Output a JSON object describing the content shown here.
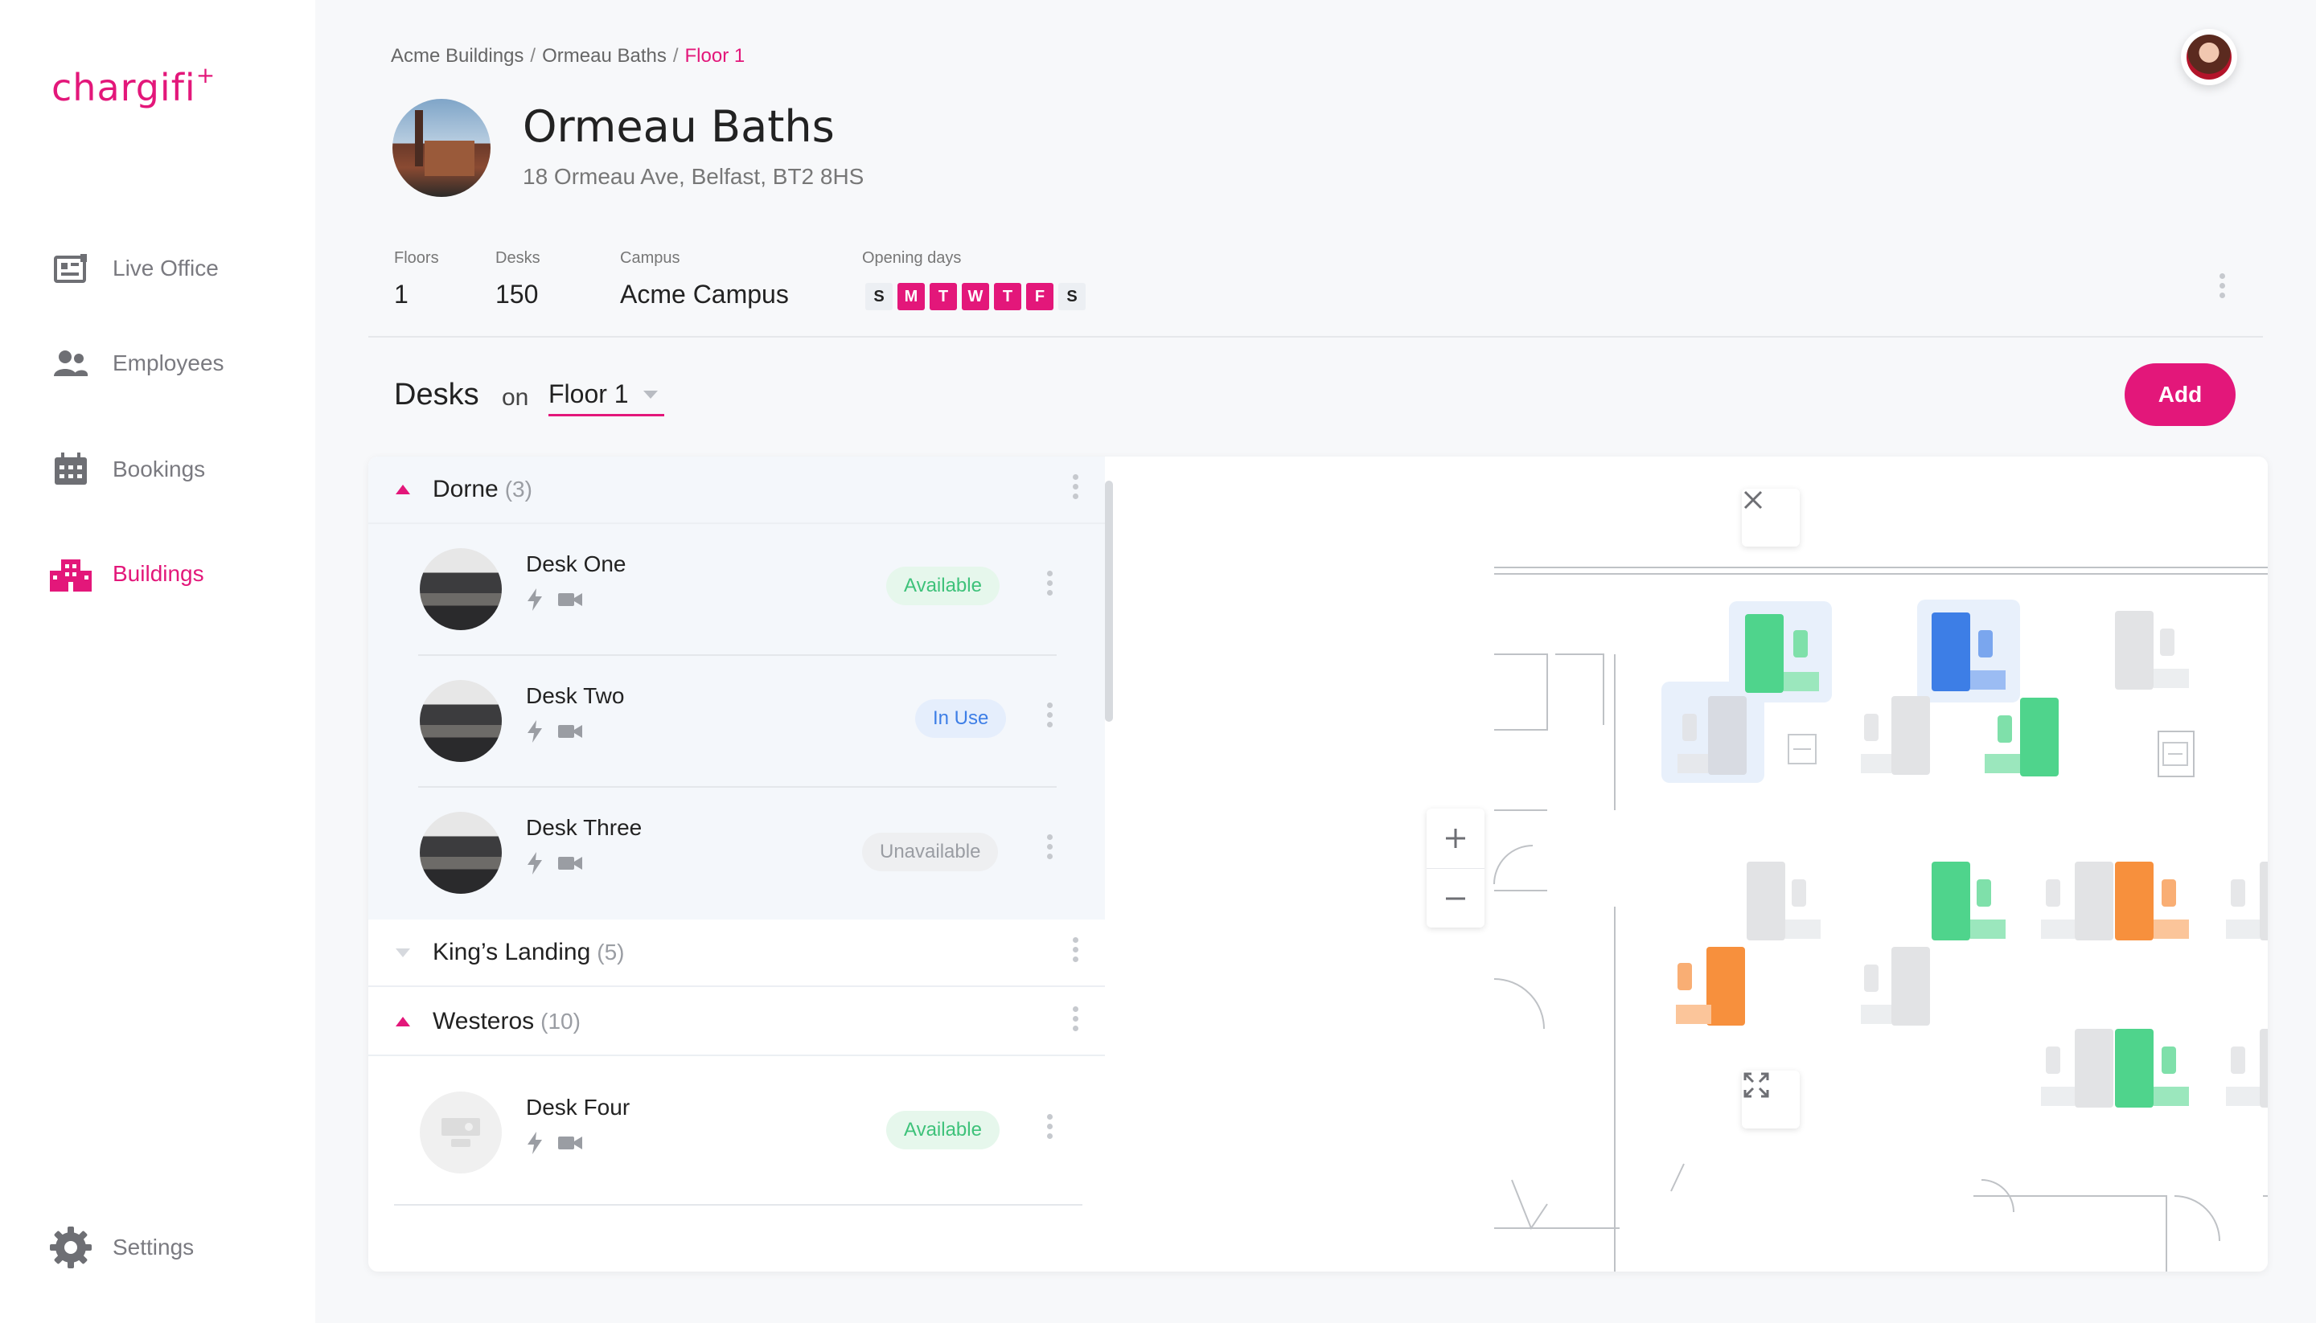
{
  "app": {
    "logo_text": "chargifi",
    "logo_mark": "+"
  },
  "sidebar": {
    "items": [
      {
        "label": "Live Office",
        "icon": "live-office-icon",
        "active": false
      },
      {
        "label": "Employees",
        "icon": "employees-icon",
        "active": false
      },
      {
        "label": "Bookings",
        "icon": "calendar-icon",
        "active": false
      },
      {
        "label": "Buildings",
        "icon": "buildings-icon",
        "active": true
      }
    ],
    "settings_label": "Settings"
  },
  "breadcrumb": {
    "items": [
      "Acme Buildings",
      "Ormeau Baths",
      "Floor 1"
    ],
    "separator": "/"
  },
  "building": {
    "name": "Ormeau Baths",
    "address": "18 Ormeau Ave, Belfast, BT2 8HS",
    "stats": {
      "floors_label": "Floors",
      "floors_value": "1",
      "desks_label": "Desks",
      "desks_value": "150",
      "campus_label": "Campus",
      "campus_value": "Acme Campus",
      "opening_label": "Opening days"
    },
    "days": [
      {
        "letter": "S",
        "open": false
      },
      {
        "letter": "M",
        "open": true
      },
      {
        "letter": "T",
        "open": true
      },
      {
        "letter": "W",
        "open": true
      },
      {
        "letter": "T",
        "open": true
      },
      {
        "letter": "F",
        "open": true
      },
      {
        "letter": "S",
        "open": false
      }
    ]
  },
  "desks_section": {
    "title": "Desks",
    "on_label": "on",
    "floor_value": "Floor 1",
    "add_label": "Add"
  },
  "groups": [
    {
      "name": "Dorne",
      "count": "(3)",
      "expanded": true
    },
    {
      "name": "King’s Landing",
      "count": "(5)",
      "expanded": false
    },
    {
      "name": "Westeros",
      "count": "(10)",
      "expanded": true
    }
  ],
  "desks": [
    {
      "name": "Desk One",
      "status": "Available"
    },
    {
      "name": "Desk Two",
      "status": "In Use"
    },
    {
      "name": "Desk Three",
      "status": "Unavailable"
    },
    {
      "name": "Desk Four",
      "status": "Available"
    }
  ],
  "colors": {
    "accent": "#e3177a",
    "available": "#3ec27a",
    "in_use": "#3d7ee6",
    "occupied_orange": "#f7903d",
    "idle_grey": "#e2e3e5"
  }
}
